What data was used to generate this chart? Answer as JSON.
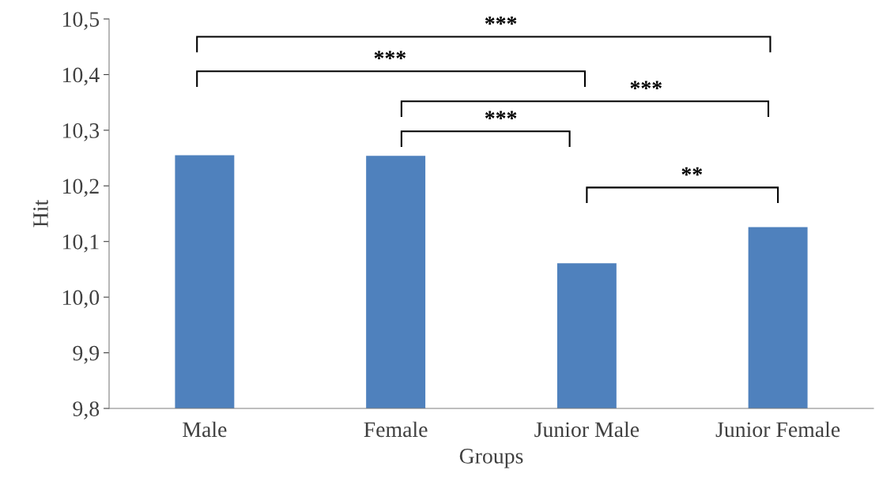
{
  "chart_data": {
    "type": "bar",
    "xlabel": "Groups",
    "ylabel": "Hit",
    "categories": [
      "Male",
      "Female",
      "Junior Male",
      "Junior Female"
    ],
    "values": [
      10.255,
      10.254,
      10.061,
      10.126
    ],
    "color": "#4f81bd",
    "ylim": [
      9.8,
      10.5
    ],
    "yticks": [
      {
        "value": 9.8,
        "label": "9,8"
      },
      {
        "value": 9.9,
        "label": "9,9"
      },
      {
        "value": 10.0,
        "label": "10,0"
      },
      {
        "value": 10.1,
        "label": "10,1"
      },
      {
        "value": 10.2,
        "label": "10,2"
      },
      {
        "value": 10.3,
        "label": "10,3"
      },
      {
        "value": 10.4,
        "label": "10,4"
      },
      {
        "value": 10.5,
        "label": "10,5"
      }
    ],
    "grid": false,
    "legend": false,
    "annotations": [
      "***",
      "***",
      "***",
      "***",
      "**"
    ]
  }
}
